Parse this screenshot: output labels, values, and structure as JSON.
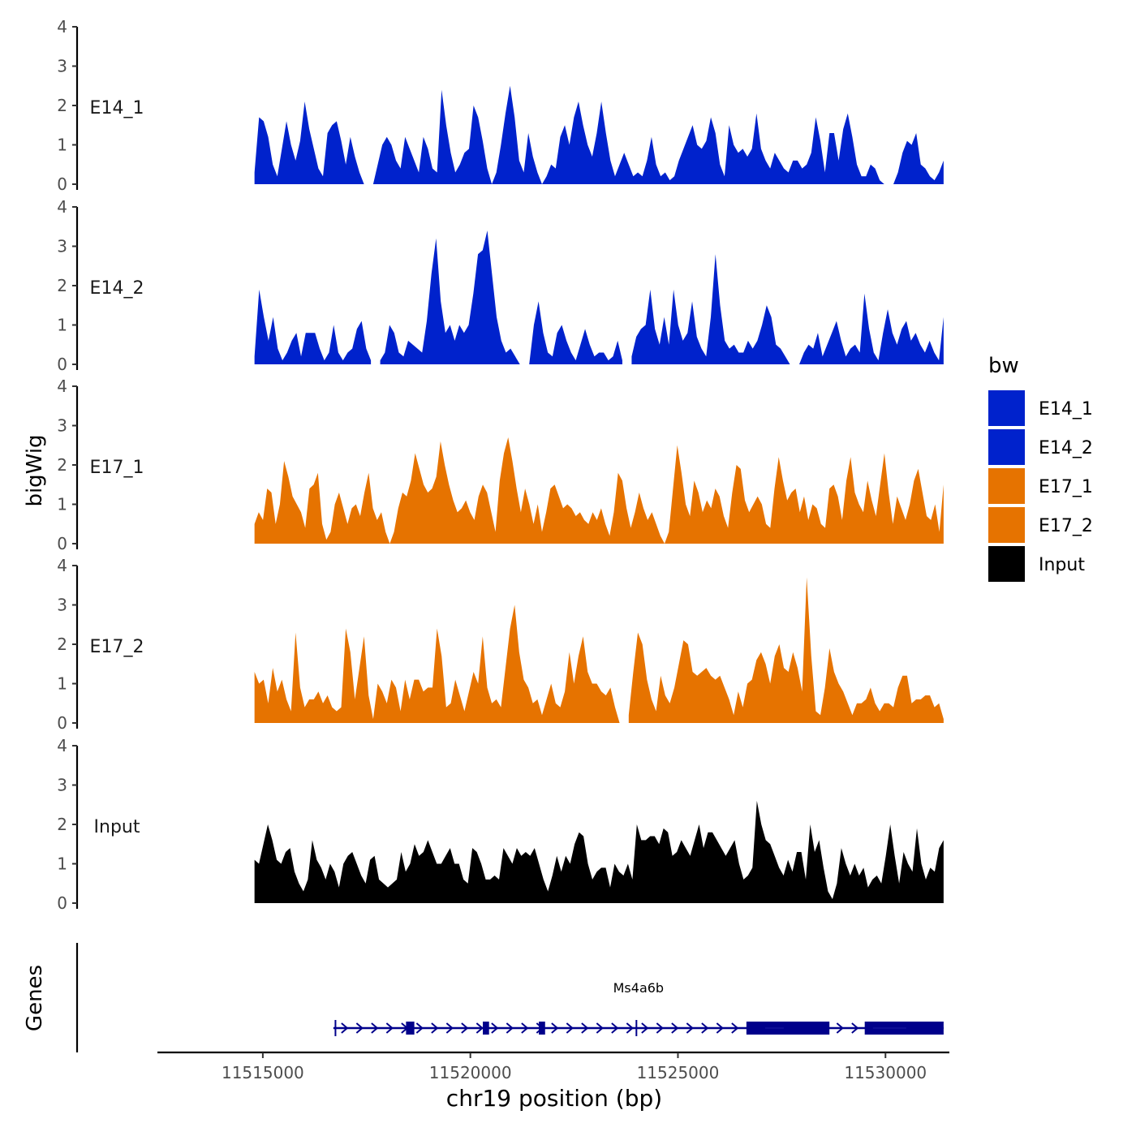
{
  "chart_data": {
    "type": "area",
    "ylabel": "bigWig",
    "xlabel": "chr19 position (bp)",
    "xlim": [
      11512500,
      11531500
    ],
    "x_ticks": [
      11515000,
      11520000,
      11525000,
      11530000
    ],
    "x_tick_labels": [
      "11515000",
      "11520000",
      "11525000",
      "11530000"
    ],
    "ylim": [
      0,
      4
    ],
    "y_ticks": [
      0,
      1,
      2,
      3,
      4
    ],
    "y_tick_labels": [
      "0",
      "1",
      "2",
      "3",
      "4"
    ],
    "series_x_range": [
      11514800,
      11531400
    ],
    "series": [
      {
        "name": "E14_1",
        "color": "#0022CC",
        "values": [
          0.3,
          1.7,
          1.6,
          1.2,
          0.5,
          0.2,
          0.9,
          1.6,
          1.0,
          0.6,
          1.1,
          2.1,
          1.4,
          0.9,
          0.4,
          0.2,
          1.3,
          1.5,
          1.6,
          1.1,
          0.5,
          1.2,
          0.7,
          0.3,
          0,
          null,
          0,
          0.5,
          1.0,
          1.2,
          1.0,
          0.6,
          0.4,
          1.2,
          0.9,
          0.6,
          0.3,
          1.2,
          0.9,
          0.4,
          0.3,
          2.4,
          1.5,
          0.8,
          0.3,
          0.5,
          0.8,
          0.9,
          2.0,
          1.7,
          1.1,
          0.4,
          0,
          0.3,
          1.0,
          1.8,
          2.5,
          1.7,
          0.6,
          0.3,
          1.3,
          0.7,
          0.3,
          0,
          0.2,
          0.5,
          0.4,
          1.2,
          1.5,
          1.0,
          1.7,
          2.1,
          1.5,
          1.0,
          0.7,
          1.3,
          2.1,
          1.3,
          0.6,
          0.2,
          0.5,
          0.8,
          0.5,
          0.2,
          0.3,
          0.2,
          0.6,
          1.2,
          0.5,
          0.2,
          0.3,
          0.1,
          0.2,
          0.6,
          0.9,
          1.2,
          1.5,
          1.0,
          0.9,
          1.1,
          1.7,
          1.3,
          0.5,
          0.2,
          1.5,
          1.0,
          0.8,
          0.9,
          0.7,
          0.9,
          1.8,
          0.9,
          0.6,
          0.4,
          0.8,
          0.6,
          0.4,
          0.3,
          0.6,
          0.6,
          0.4,
          0.5,
          0.8,
          1.7,
          1.1,
          0.3,
          1.3,
          1.3,
          0.6,
          1.4,
          1.8,
          1.2,
          0.5,
          0.2,
          0.2,
          0.5,
          0.4,
          0.1,
          0,
          null,
          0,
          0.3,
          0.8,
          1.1,
          1.0,
          1.3,
          0.5,
          0.4,
          0.2,
          0.1,
          0.3,
          0.6
        ]
      },
      {
        "name": "E14_2",
        "color": "#0022CC",
        "values": [
          0.2,
          1.9,
          1.2,
          0.6,
          1.2,
          0.4,
          0.1,
          0.3,
          0.6,
          0.8,
          0.2,
          0.8,
          0.8,
          0.8,
          0.4,
          0.1,
          0.3,
          1.0,
          0.3,
          0.1,
          0.3,
          0.4,
          0.9,
          1.1,
          0.4,
          0.1,
          null,
          0.1,
          0.3,
          1.0,
          0.8,
          0.3,
          0.2,
          0.6,
          0.5,
          0.4,
          0.3,
          1.1,
          2.3,
          3.2,
          1.6,
          0.8,
          1.0,
          0.6,
          1.0,
          0.8,
          1.0,
          1.8,
          2.8,
          2.9,
          3.4,
          2.3,
          1.2,
          0.6,
          0.3,
          0.4,
          0.2,
          0,
          null,
          0,
          1.0,
          1.6,
          0.8,
          0.3,
          0.2,
          0.8,
          1.0,
          0.6,
          0.3,
          0.1,
          0.5,
          0.9,
          0.5,
          0.2,
          0.3,
          0.3,
          0.1,
          0.2,
          0.6,
          0.1,
          null,
          0.2,
          0.7,
          0.9,
          1.0,
          1.9,
          0.9,
          0.5,
          1.2,
          0.5,
          1.9,
          1.0,
          0.6,
          0.8,
          1.6,
          0.7,
          0.4,
          0.2,
          1.2,
          2.8,
          1.5,
          0.6,
          0.4,
          0.5,
          0.3,
          0.3,
          0.6,
          0.4,
          0.6,
          1.0,
          1.5,
          1.2,
          0.5,
          0.4,
          0.2,
          0,
          null,
          0,
          0.3,
          0.5,
          0.4,
          0.8,
          0.2,
          0.5,
          0.8,
          1.1,
          0.6,
          0.2,
          0.4,
          0.5,
          0.3,
          1.8,
          0.9,
          0.3,
          0.1,
          0.8,
          1.4,
          0.8,
          0.5,
          0.9,
          1.1,
          0.6,
          0.8,
          0.5,
          0.3,
          0.6,
          0.3,
          0.1,
          1.2
        ]
      },
      {
        "name": "E17_1",
        "color": "#E67300",
        "values": [
          0.5,
          0.8,
          0.6,
          1.4,
          1.3,
          0.5,
          1.0,
          2.1,
          1.7,
          1.2,
          1.0,
          0.8,
          0.4,
          1.4,
          1.5,
          1.8,
          0.5,
          0.1,
          0.3,
          1.0,
          1.3,
          0.9,
          0.5,
          0.9,
          1.0,
          0.7,
          1.3,
          1.8,
          0.9,
          0.6,
          0.8,
          0.3,
          0,
          0.3,
          0.9,
          1.3,
          1.2,
          1.6,
          2.3,
          1.9,
          1.5,
          1.3,
          1.4,
          1.7,
          2.6,
          2.0,
          1.5,
          1.1,
          0.8,
          0.9,
          1.1,
          0.8,
          0.6,
          1.2,
          1.5,
          1.3,
          0.8,
          0.3,
          1.6,
          2.3,
          2.7,
          2.1,
          1.4,
          0.8,
          1.4,
          1.0,
          0.5,
          1.0,
          0.3,
          0.8,
          1.4,
          1.5,
          1.2,
          0.9,
          1.0,
          0.9,
          0.7,
          0.8,
          0.6,
          0.5,
          0.8,
          0.6,
          0.9,
          0.5,
          0.2,
          0.8,
          1.8,
          1.6,
          0.9,
          0.4,
          0.8,
          1.3,
          0.9,
          0.6,
          0.8,
          0.5,
          0.2,
          0,
          0.3,
          1.4,
          2.5,
          1.8,
          1.0,
          0.7,
          1.6,
          1.3,
          0.8,
          1.1,
          0.9,
          1.4,
          1.2,
          0.7,
          0.4,
          1.3,
          2.0,
          1.9,
          1.1,
          0.8,
          1.0,
          1.2,
          1.0,
          0.5,
          0.4,
          1.4,
          2.2,
          1.6,
          1.1,
          1.3,
          1.4,
          0.8,
          1.2,
          0.6,
          1.0,
          0.9,
          0.5,
          0.4,
          1.4,
          1.5,
          1.2,
          0.6,
          1.6,
          2.2,
          1.3,
          1.0,
          0.8,
          1.6,
          1.1,
          0.7,
          1.5,
          2.3,
          1.3,
          0.5,
          1.2,
          0.9,
          0.6,
          1.0,
          1.6,
          1.9,
          1.3,
          0.7,
          0.6,
          1.0,
          0.3,
          1.5
        ]
      },
      {
        "name": "E17_2",
        "color": "#E67300",
        "values": [
          1.3,
          1.0,
          1.1,
          0.5,
          1.4,
          0.8,
          1.1,
          0.6,
          0.3,
          2.3,
          0.9,
          0.4,
          0.6,
          0.6,
          0.8,
          0.5,
          0.7,
          0.4,
          0.3,
          0.4,
          2.4,
          1.8,
          0.6,
          1.4,
          2.2,
          0.7,
          0.1,
          1.0,
          0.8,
          0.5,
          1.1,
          0.9,
          0.3,
          1.1,
          0.6,
          1.1,
          1.1,
          0.8,
          0.9,
          0.9,
          2.4,
          1.7,
          0.4,
          0.5,
          1.1,
          0.7,
          0.3,
          0.8,
          1.3,
          1.0,
          2.2,
          0.9,
          0.5,
          0.6,
          0.4,
          1.4,
          2.4,
          3.0,
          1.8,
          1.1,
          0.9,
          0.5,
          0.6,
          0.2,
          0.6,
          1.0,
          0.5,
          0.4,
          0.8,
          1.8,
          1.0,
          1.7,
          2.2,
          1.3,
          1.0,
          1.0,
          0.8,
          0.7,
          0.9,
          0.4,
          0,
          null,
          0.2,
          1.3,
          2.3,
          2.0,
          1.1,
          0.6,
          0.3,
          1.2,
          0.7,
          0.5,
          0.9,
          1.5,
          2.1,
          2.0,
          1.3,
          1.2,
          1.3,
          1.4,
          1.2,
          1.1,
          1.2,
          0.9,
          0.6,
          0.2,
          0.8,
          0.4,
          1.0,
          1.1,
          1.6,
          1.8,
          1.5,
          1.0,
          1.7,
          2.0,
          1.4,
          1.3,
          1.8,
          1.4,
          0.8,
          3.7,
          1.7,
          0.3,
          0.2,
          0.9,
          1.9,
          1.3,
          1.0,
          0.8,
          0.5,
          0.2,
          0.5,
          0.5,
          0.6,
          0.9,
          0.5,
          0.3,
          0.5,
          0.5,
          0.4,
          0.9,
          1.2,
          1.2,
          0.5,
          0.6,
          0.6,
          0.7,
          0.7,
          0.4,
          0.5,
          0.1
        ]
      },
      {
        "name": "Input",
        "color": "#000000",
        "values": [
          1.1,
          1.0,
          1.5,
          2.0,
          1.6,
          1.1,
          1.0,
          1.3,
          1.4,
          0.8,
          0.5,
          0.3,
          0.6,
          1.6,
          1.1,
          0.9,
          0.6,
          1.0,
          0.8,
          0.4,
          1.0,
          1.2,
          1.3,
          1.0,
          0.7,
          0.5,
          1.1,
          1.2,
          0.6,
          0.5,
          0.4,
          0.5,
          0.6,
          1.3,
          0.8,
          1.0,
          1.5,
          1.2,
          1.3,
          1.6,
          1.3,
          1.0,
          1.0,
          1.2,
          1.4,
          1.0,
          1.0,
          0.6,
          0.5,
          1.4,
          1.3,
          1.0,
          0.6,
          0.6,
          0.7,
          0.6,
          1.4,
          1.2,
          1.0,
          1.4,
          1.2,
          1.3,
          1.2,
          1.4,
          1.0,
          0.6,
          0.3,
          0.7,
          1.2,
          0.8,
          1.2,
          1.0,
          1.5,
          1.8,
          1.7,
          1.0,
          0.6,
          0.8,
          0.9,
          0.9,
          0.4,
          1.0,
          0.8,
          0.7,
          1.0,
          0.6,
          2.0,
          1.6,
          1.6,
          1.7,
          1.7,
          1.5,
          1.9,
          1.8,
          1.2,
          1.3,
          1.6,
          1.4,
          1.2,
          1.6,
          2.0,
          1.4,
          1.8,
          1.8,
          1.6,
          1.4,
          1.2,
          1.4,
          1.6,
          1.0,
          0.6,
          0.7,
          0.9,
          2.6,
          2.0,
          1.6,
          1.5,
          1.2,
          0.9,
          0.7,
          1.1,
          0.8,
          1.3,
          1.3,
          0.6,
          2.0,
          1.3,
          1.6,
          0.9,
          0.3,
          0.1,
          0.5,
          1.4,
          1.0,
          0.7,
          1.0,
          0.7,
          0.9,
          0.4,
          0.6,
          0.7,
          0.5,
          1.2,
          2.0,
          1.2,
          0.5,
          1.3,
          1.0,
          0.8,
          1.9,
          1.0,
          0.6,
          0.9,
          0.8,
          1.4,
          1.6
        ]
      }
    ],
    "genes_track": {
      "label": "Genes",
      "gene_name": "Ms4a6b",
      "color": "#00008B",
      "strand": "+",
      "tx_start": 11516700,
      "tx_end": 11531400,
      "marker_positions": [
        11516750,
        11524000
      ],
      "exons": [
        {
          "start": 11518450,
          "end": 11518650,
          "type": "coding"
        },
        {
          "start": 11520300,
          "end": 11520450,
          "type": "coding"
        },
        {
          "start": 11521650,
          "end": 11521800,
          "type": "coding"
        },
        {
          "start": 11526650,
          "end": 11528650,
          "type": "coding"
        },
        {
          "start": 11529500,
          "end": 11531400,
          "type": "coding"
        }
      ],
      "utrs": [
        {
          "start": 11527100,
          "end": 11527550
        },
        {
          "start": 11529700,
          "end": 11530500
        }
      ]
    },
    "legend": {
      "title": "bw",
      "position": "right",
      "entries": [
        {
          "label": "E14_1",
          "color": "#0022CC"
        },
        {
          "label": "E14_2",
          "color": "#0022CC"
        },
        {
          "label": "E17_1",
          "color": "#E67300"
        },
        {
          "label": "E17_2",
          "color": "#E67300"
        },
        {
          "label": "Input",
          "color": "#000000"
        }
      ]
    }
  }
}
